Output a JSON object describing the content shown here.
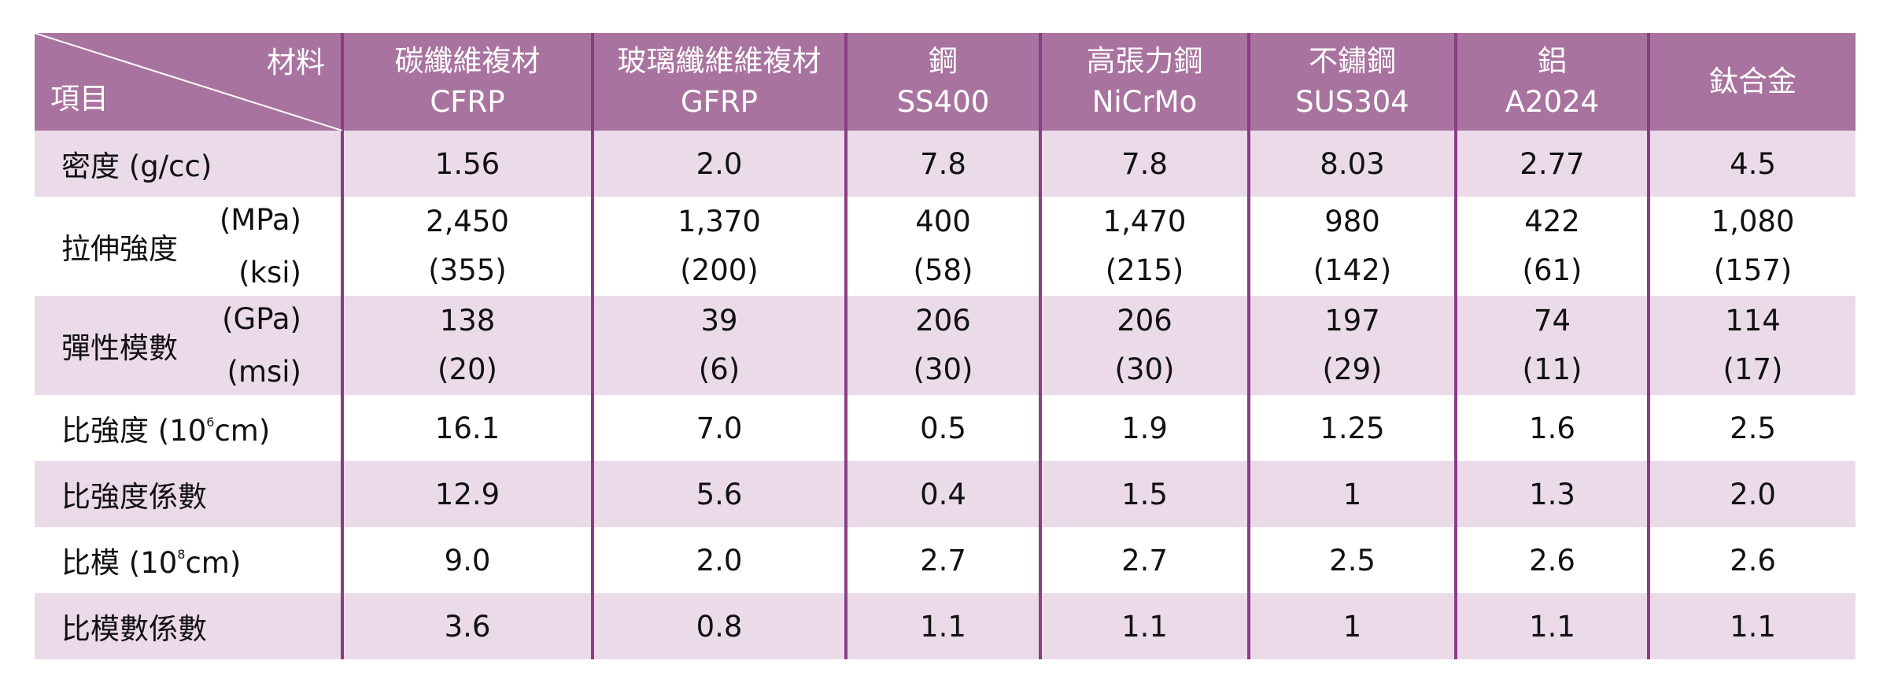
{
  "header": {
    "corner_top": "材料",
    "corner_bottom": "項目",
    "columns": [
      {
        "line1": "碳纖維複材",
        "line2": "CFRP"
      },
      {
        "line1": "玻璃纖維維複材",
        "line2": "GFRP"
      },
      {
        "line1": "鋼",
        "line2": "SS400"
      },
      {
        "line1": "高張力鋼",
        "line2": "NiCrMo"
      },
      {
        "line1": "不鏽鋼",
        "line2": "SUS304"
      },
      {
        "line1": "鋁",
        "line2": "A2024"
      },
      {
        "line1": "鈦合金",
        "line2": ""
      }
    ]
  },
  "rows": {
    "density": {
      "label": "密度 (g/cc)",
      "values": [
        "1.56",
        "2.0",
        "7.8",
        "7.8",
        "8.03",
        "2.77",
        "4.5"
      ]
    },
    "tensile": {
      "label": "拉伸強度",
      "unit1": "(MPa)",
      "unit2": "(ksi)",
      "values1": [
        "2,450",
        "1,370",
        "400",
        "1,470",
        "980",
        "422",
        "1,080"
      ],
      "values2": [
        "(355)",
        "(200)",
        "(58)",
        "(215)",
        "(142)",
        "(61)",
        "(157)"
      ]
    },
    "modulus": {
      "label": "彈性模數",
      "unit1": "(GPa)",
      "unit2": "(msi)",
      "values1": [
        "138",
        "39",
        "206",
        "206",
        "197",
        "74",
        "114"
      ],
      "values2": [
        "(20)",
        "(6)",
        "(30)",
        "(30)",
        "(29)",
        "(11)",
        "(17)"
      ]
    },
    "specific_strength": {
      "label_pre": "比強度 (10",
      "label_sup": "6",
      "label_post": "cm)",
      "values": [
        "16.1",
        "7.0",
        "0.5",
        "1.9",
        "1.25",
        "1.6",
        "2.5"
      ]
    },
    "strength_coef": {
      "label": "比強度係數",
      "values": [
        "12.9",
        "5.6",
        "0.4",
        "1.5",
        "1",
        "1.3",
        "2.0"
      ]
    },
    "specific_modulus": {
      "label_pre": "比模 (10",
      "label_sup": "8",
      "label_post": "cm)",
      "values": [
        "9.0",
        "2.0",
        "2.7",
        "2.7",
        "2.5",
        "2.6",
        "2.6"
      ]
    },
    "modulus_coef": {
      "label": "比模數係數",
      "values": [
        "3.6",
        "0.8",
        "1.1",
        "1.1",
        "1",
        "1.1",
        "1.1"
      ]
    }
  }
}
